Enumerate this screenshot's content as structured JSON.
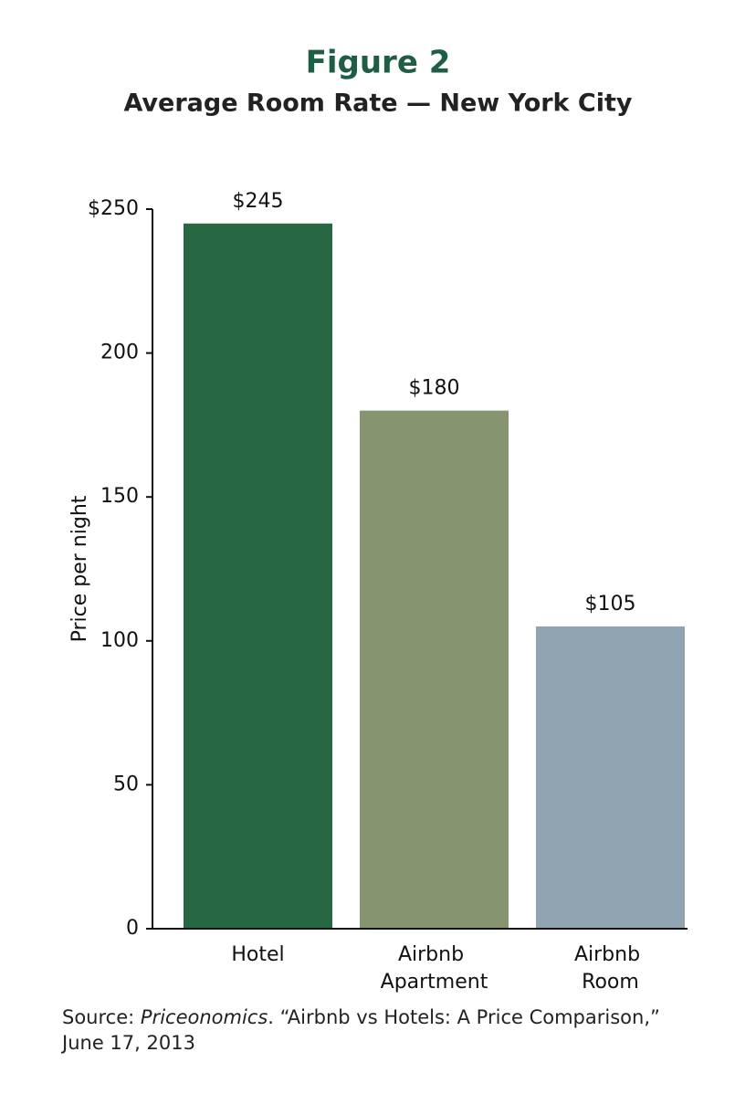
{
  "chart_data": {
    "type": "bar",
    "title": "Figure 2",
    "subtitle": "Average Room Rate — New York City",
    "y_label": "Price per night",
    "categories": [
      "Hotel",
      "Airbnb Apartment",
      "Airbnb Room"
    ],
    "values": [
      245,
      180,
      105
    ],
    "value_labels": [
      "$245",
      "$180",
      "$105"
    ],
    "colors": [
      "#276842",
      "#879470",
      "#8fa4b0"
    ],
    "ylim": [
      0,
      250
    ],
    "yticks": [
      0,
      50,
      100,
      150,
      200,
      {
        "value": 250,
        "label": "$250"
      }
    ],
    "source": [
      "Source: ",
      "Priceonomics",
      ". “Airbnb vs Hotels: A Price Comparison,”",
      "June 17, 2013"
    ]
  }
}
